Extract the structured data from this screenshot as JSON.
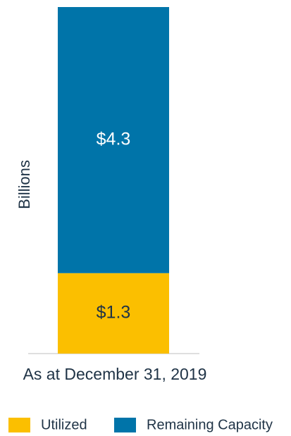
{
  "chart_data": {
    "type": "stacked_bar",
    "categories": [
      "As at December 31, 2019"
    ],
    "ylabel": "Billions",
    "ylim": [
      0,
      5.6
    ],
    "series": [
      {
        "name": "Utilized",
        "color": "#fbbf00",
        "values": [
          1.3
        ],
        "value_labels": [
          "$1.3"
        ]
      },
      {
        "name": "Remaining Capacity",
        "color": "#0074a9",
        "values": [
          4.3
        ],
        "value_labels": [
          "$4.3"
        ]
      }
    ],
    "legend": "bottom"
  }
}
